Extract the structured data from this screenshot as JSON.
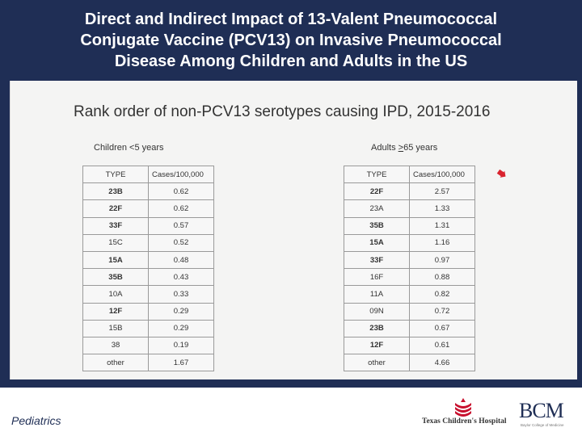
{
  "header": {
    "title": "Direct and Indirect Impact of 13-Valent Pneumococcal\nConjugate Vaccine (PCV13) on Invasive Pneumococcal\nDisease Among Children and Adults in the US"
  },
  "slide": {
    "title": "Rank order of non-PCV13 serotypes causing IPD, 2015-2016",
    "children_label": "Children <5 years",
    "adults_label": "Adults >65 years",
    "columns": [
      "TYPE",
      "Cases/100,000"
    ],
    "children_rows": [
      {
        "type": "23B",
        "cases": "0.62",
        "bold": true
      },
      {
        "type": "22F",
        "cases": "0.62",
        "bold": true
      },
      {
        "type": "33F",
        "cases": "0.57",
        "bold": true
      },
      {
        "type": "15C",
        "cases": "0.52",
        "bold": false
      },
      {
        "type": "15A",
        "cases": "0.48",
        "bold": true
      },
      {
        "type": "35B",
        "cases": "0.43",
        "bold": true
      },
      {
        "type": "10A",
        "cases": "0.33",
        "bold": false
      },
      {
        "type": "12F",
        "cases": "0.29",
        "bold": true
      },
      {
        "type": "15B",
        "cases": "0.29",
        "bold": false
      },
      {
        "type": "38",
        "cases": "0.19",
        "bold": false
      },
      {
        "type": "other",
        "cases": "1.67",
        "bold": false
      }
    ],
    "adults_rows": [
      {
        "type": "22F",
        "cases": "2.57",
        "bold": true
      },
      {
        "type": "23A",
        "cases": "1.33",
        "bold": false
      },
      {
        "type": "35B",
        "cases": "1.31",
        "bold": true
      },
      {
        "type": "15A",
        "cases": "1.16",
        "bold": true
      },
      {
        "type": "33F",
        "cases": "0.97",
        "bold": true
      },
      {
        "type": "16F",
        "cases": "0.88",
        "bold": false
      },
      {
        "type": "11A",
        "cases": "0.82",
        "bold": false
      },
      {
        "type": "09N",
        "cases": "0.72",
        "bold": false
      },
      {
        "type": "23B",
        "cases": "0.67",
        "bold": true
      },
      {
        "type": "12F",
        "cases": "0.61",
        "bold": true
      },
      {
        "type": "other",
        "cases": "4.66",
        "bold": false
      }
    ],
    "arrow_icon": "red-arrow-icon",
    "arrow_color": "#d9232e"
  },
  "footer": {
    "department": "Pediatrics",
    "tch_logo_text": "Texas Children's Hospital",
    "bcm_logo_text": "BCM",
    "bcm_subtext": "Baylor College of Medicine"
  },
  "colors": {
    "header_bg": "#1f2e55",
    "header_text": "#ffffff",
    "tch_red": "#c8102e"
  }
}
